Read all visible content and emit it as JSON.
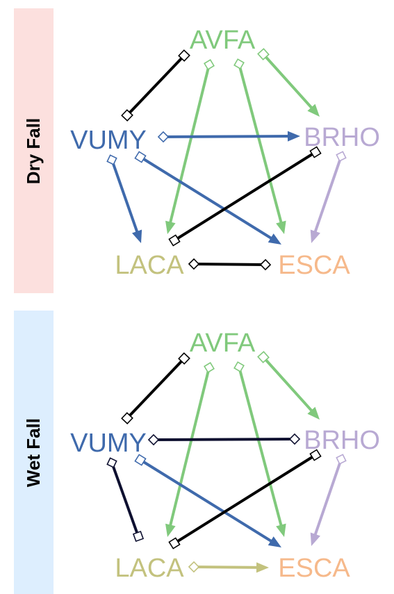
{
  "colors": {
    "AVFA": "#80c97c",
    "BRHO": "#b8a9d3",
    "VUMY": "#3f6aac",
    "LACA": "#c3c27e",
    "ESCA": "#f6b98b",
    "neutral": "#000000",
    "negative_wet": "#0e1030",
    "dry_band": "#fce0de",
    "wet_band": "#ddeefe"
  },
  "panels": [
    {
      "id": "dry",
      "label": "Dry Fall",
      "nodes": [
        "AVFA",
        "BRHO",
        "ESCA",
        "LACA",
        "VUMY"
      ],
      "edges": [
        {
          "from": "AVFA",
          "to": "VUMY",
          "color": "neutral",
          "tail": "square",
          "head": "square"
        },
        {
          "from": "AVFA",
          "to": "BRHO",
          "color": "AVFA",
          "tail": "square",
          "head": "arrow"
        },
        {
          "from": "AVFA",
          "to": "LACA",
          "color": "AVFA",
          "tail": "diamond",
          "head": "arrow"
        },
        {
          "from": "AVFA",
          "to": "ESCA",
          "color": "AVFA",
          "tail": "diamond",
          "head": "arrow"
        },
        {
          "from": "VUMY",
          "to": "BRHO",
          "color": "VUMY",
          "tail": "diamond",
          "head": "arrow"
        },
        {
          "from": "VUMY",
          "to": "LACA",
          "color": "VUMY",
          "tail": "diamond",
          "head": "arrow"
        },
        {
          "from": "VUMY",
          "to": "ESCA",
          "color": "VUMY",
          "tail": "square",
          "head": "arrow"
        },
        {
          "from": "BRHO",
          "to": "LACA",
          "color": "neutral",
          "tail": "square",
          "head": "square"
        },
        {
          "from": "BRHO",
          "to": "ESCA",
          "color": "BRHO",
          "tail": "diamond",
          "head": "arrow"
        },
        {
          "from": "LACA",
          "to": "ESCA",
          "color": "neutral",
          "tail": "diamond",
          "head": "diamond"
        }
      ]
    },
    {
      "id": "wet",
      "label": "Wet Fall",
      "nodes": [
        "AVFA",
        "BRHO",
        "ESCA",
        "LACA",
        "VUMY"
      ],
      "edges": [
        {
          "from": "AVFA",
          "to": "VUMY",
          "color": "neutral",
          "tail": "square",
          "head": "square"
        },
        {
          "from": "AVFA",
          "to": "BRHO",
          "color": "AVFA",
          "tail": "square",
          "head": "arrow"
        },
        {
          "from": "AVFA",
          "to": "LACA",
          "color": "AVFA",
          "tail": "diamond",
          "head": "arrow"
        },
        {
          "from": "AVFA",
          "to": "ESCA",
          "color": "AVFA",
          "tail": "diamond",
          "head": "arrow"
        },
        {
          "from": "VUMY",
          "to": "BRHO",
          "color": "negative_wet",
          "tail": "diamond",
          "head": "diamond"
        },
        {
          "from": "VUMY",
          "to": "LACA",
          "color": "negative_wet",
          "tail": "diamond",
          "head": "square"
        },
        {
          "from": "VUMY",
          "to": "ESCA",
          "color": "VUMY",
          "tail": "square",
          "head": "arrow"
        },
        {
          "from": "BRHO",
          "to": "LACA",
          "color": "neutral",
          "tail": "square",
          "head": "square"
        },
        {
          "from": "BRHO",
          "to": "ESCA",
          "color": "BRHO",
          "tail": "diamond",
          "head": "arrow"
        },
        {
          "from": "LACA",
          "to": "ESCA",
          "color": "LACA",
          "tail": "diamond",
          "head": "arrow"
        }
      ]
    }
  ]
}
